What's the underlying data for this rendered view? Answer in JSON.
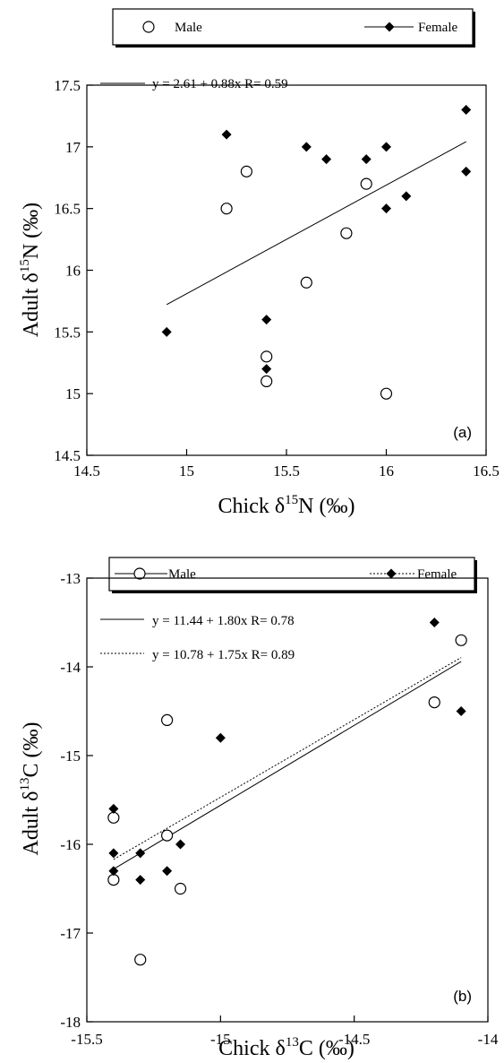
{
  "chart_data": [
    {
      "type": "scatter",
      "panel_label": "(a)",
      "xlabel": {
        "prefix": "Chick δ",
        "sup": "15",
        "suffix": "N (‰)"
      },
      "ylabel": {
        "prefix": "Adult δ",
        "sup": "15",
        "suffix": "N (‰)"
      },
      "xlim": [
        14.5,
        16.5
      ],
      "ylim": [
        14.5,
        17.5
      ],
      "xticks": [
        "14.5",
        "15",
        "15.5",
        "16",
        "16.5"
      ],
      "yticks": [
        "14.5",
        "15",
        "15.5",
        "16",
        "16.5",
        "17",
        "17.5"
      ],
      "grid": false,
      "legend_position": "top",
      "series": [
        {
          "name": "Male",
          "marker": "open-circle",
          "points": [
            [
              15.2,
              16.5
            ],
            [
              15.3,
              16.8
            ],
            [
              15.9,
              16.7
            ],
            [
              15.8,
              16.3
            ],
            [
              15.6,
              15.9
            ],
            [
              15.4,
              15.3
            ],
            [
              15.4,
              15.1
            ],
            [
              16.0,
              15.0
            ]
          ]
        },
        {
          "name": "Female",
          "marker": "filled-diamond",
          "points": [
            [
              14.9,
              15.5
            ],
            [
              15.2,
              17.1
            ],
            [
              15.4,
              15.6
            ],
            [
              15.4,
              15.2
            ],
            [
              15.6,
              17.0
            ],
            [
              15.7,
              16.9
            ],
            [
              15.9,
              16.9
            ],
            [
              16.0,
              17.0
            ],
            [
              16.0,
              16.5
            ],
            [
              16.1,
              16.6
            ],
            [
              16.4,
              17.3
            ],
            [
              16.4,
              16.8
            ]
          ]
        }
      ],
      "fits": [
        {
          "label": "y = 2.61 + 0.88x   R= 0.59",
          "style": "solid",
          "intercept": 2.61,
          "slope": 0.88,
          "x_range": [
            14.9,
            16.4
          ]
        }
      ]
    },
    {
      "type": "scatter",
      "panel_label": "(b)",
      "xlabel": {
        "prefix": "Chick δ",
        "sup": "13",
        "suffix": "C (‰)"
      },
      "ylabel": {
        "prefix": "Adult δ",
        "sup": "13",
        "suffix": "C (‰)"
      },
      "xlim": [
        -15.5,
        -14.0
      ],
      "ylim": [
        -18,
        -13
      ],
      "xticks": [
        "-15.5",
        "-15",
        "-14.5",
        "-14"
      ],
      "yticks": [
        "-18",
        "-17",
        "-16",
        "-15",
        "-14",
        "-13"
      ],
      "grid": false,
      "legend_position": "top",
      "series": [
        {
          "name": "Male",
          "marker": "open-circle",
          "points": [
            [
              -15.4,
              -15.7
            ],
            [
              -15.4,
              -16.4
            ],
            [
              -15.3,
              -17.3
            ],
            [
              -15.2,
              -15.9
            ],
            [
              -15.2,
              -14.6
            ],
            [
              -15.15,
              -16.5
            ],
            [
              -14.2,
              -14.4
            ],
            [
              -14.1,
              -13.7
            ]
          ]
        },
        {
          "name": "Female",
          "marker": "filled-diamond",
          "points": [
            [
              -15.4,
              -15.6
            ],
            [
              -15.4,
              -16.1
            ],
            [
              -15.4,
              -16.3
            ],
            [
              -15.3,
              -16.1
            ],
            [
              -15.3,
              -16.4
            ],
            [
              -15.2,
              -16.3
            ],
            [
              -15.15,
              -16.0
            ],
            [
              -15.0,
              -14.8
            ],
            [
              -14.2,
              -13.5
            ],
            [
              -14.1,
              -14.5
            ]
          ]
        }
      ],
      "fits": [
        {
          "label": "y = 11.44 + 1.80x   R= 0.78",
          "style": "solid",
          "intercept": 11.44,
          "slope": 1.8,
          "x_range": [
            -15.4,
            -14.1
          ]
        },
        {
          "label": "y = 10.78 + 1.75x   R= 0.89",
          "style": "dotted",
          "intercept": 10.78,
          "slope": 1.75,
          "x_range": [
            -15.4,
            -14.1
          ]
        }
      ]
    }
  ]
}
